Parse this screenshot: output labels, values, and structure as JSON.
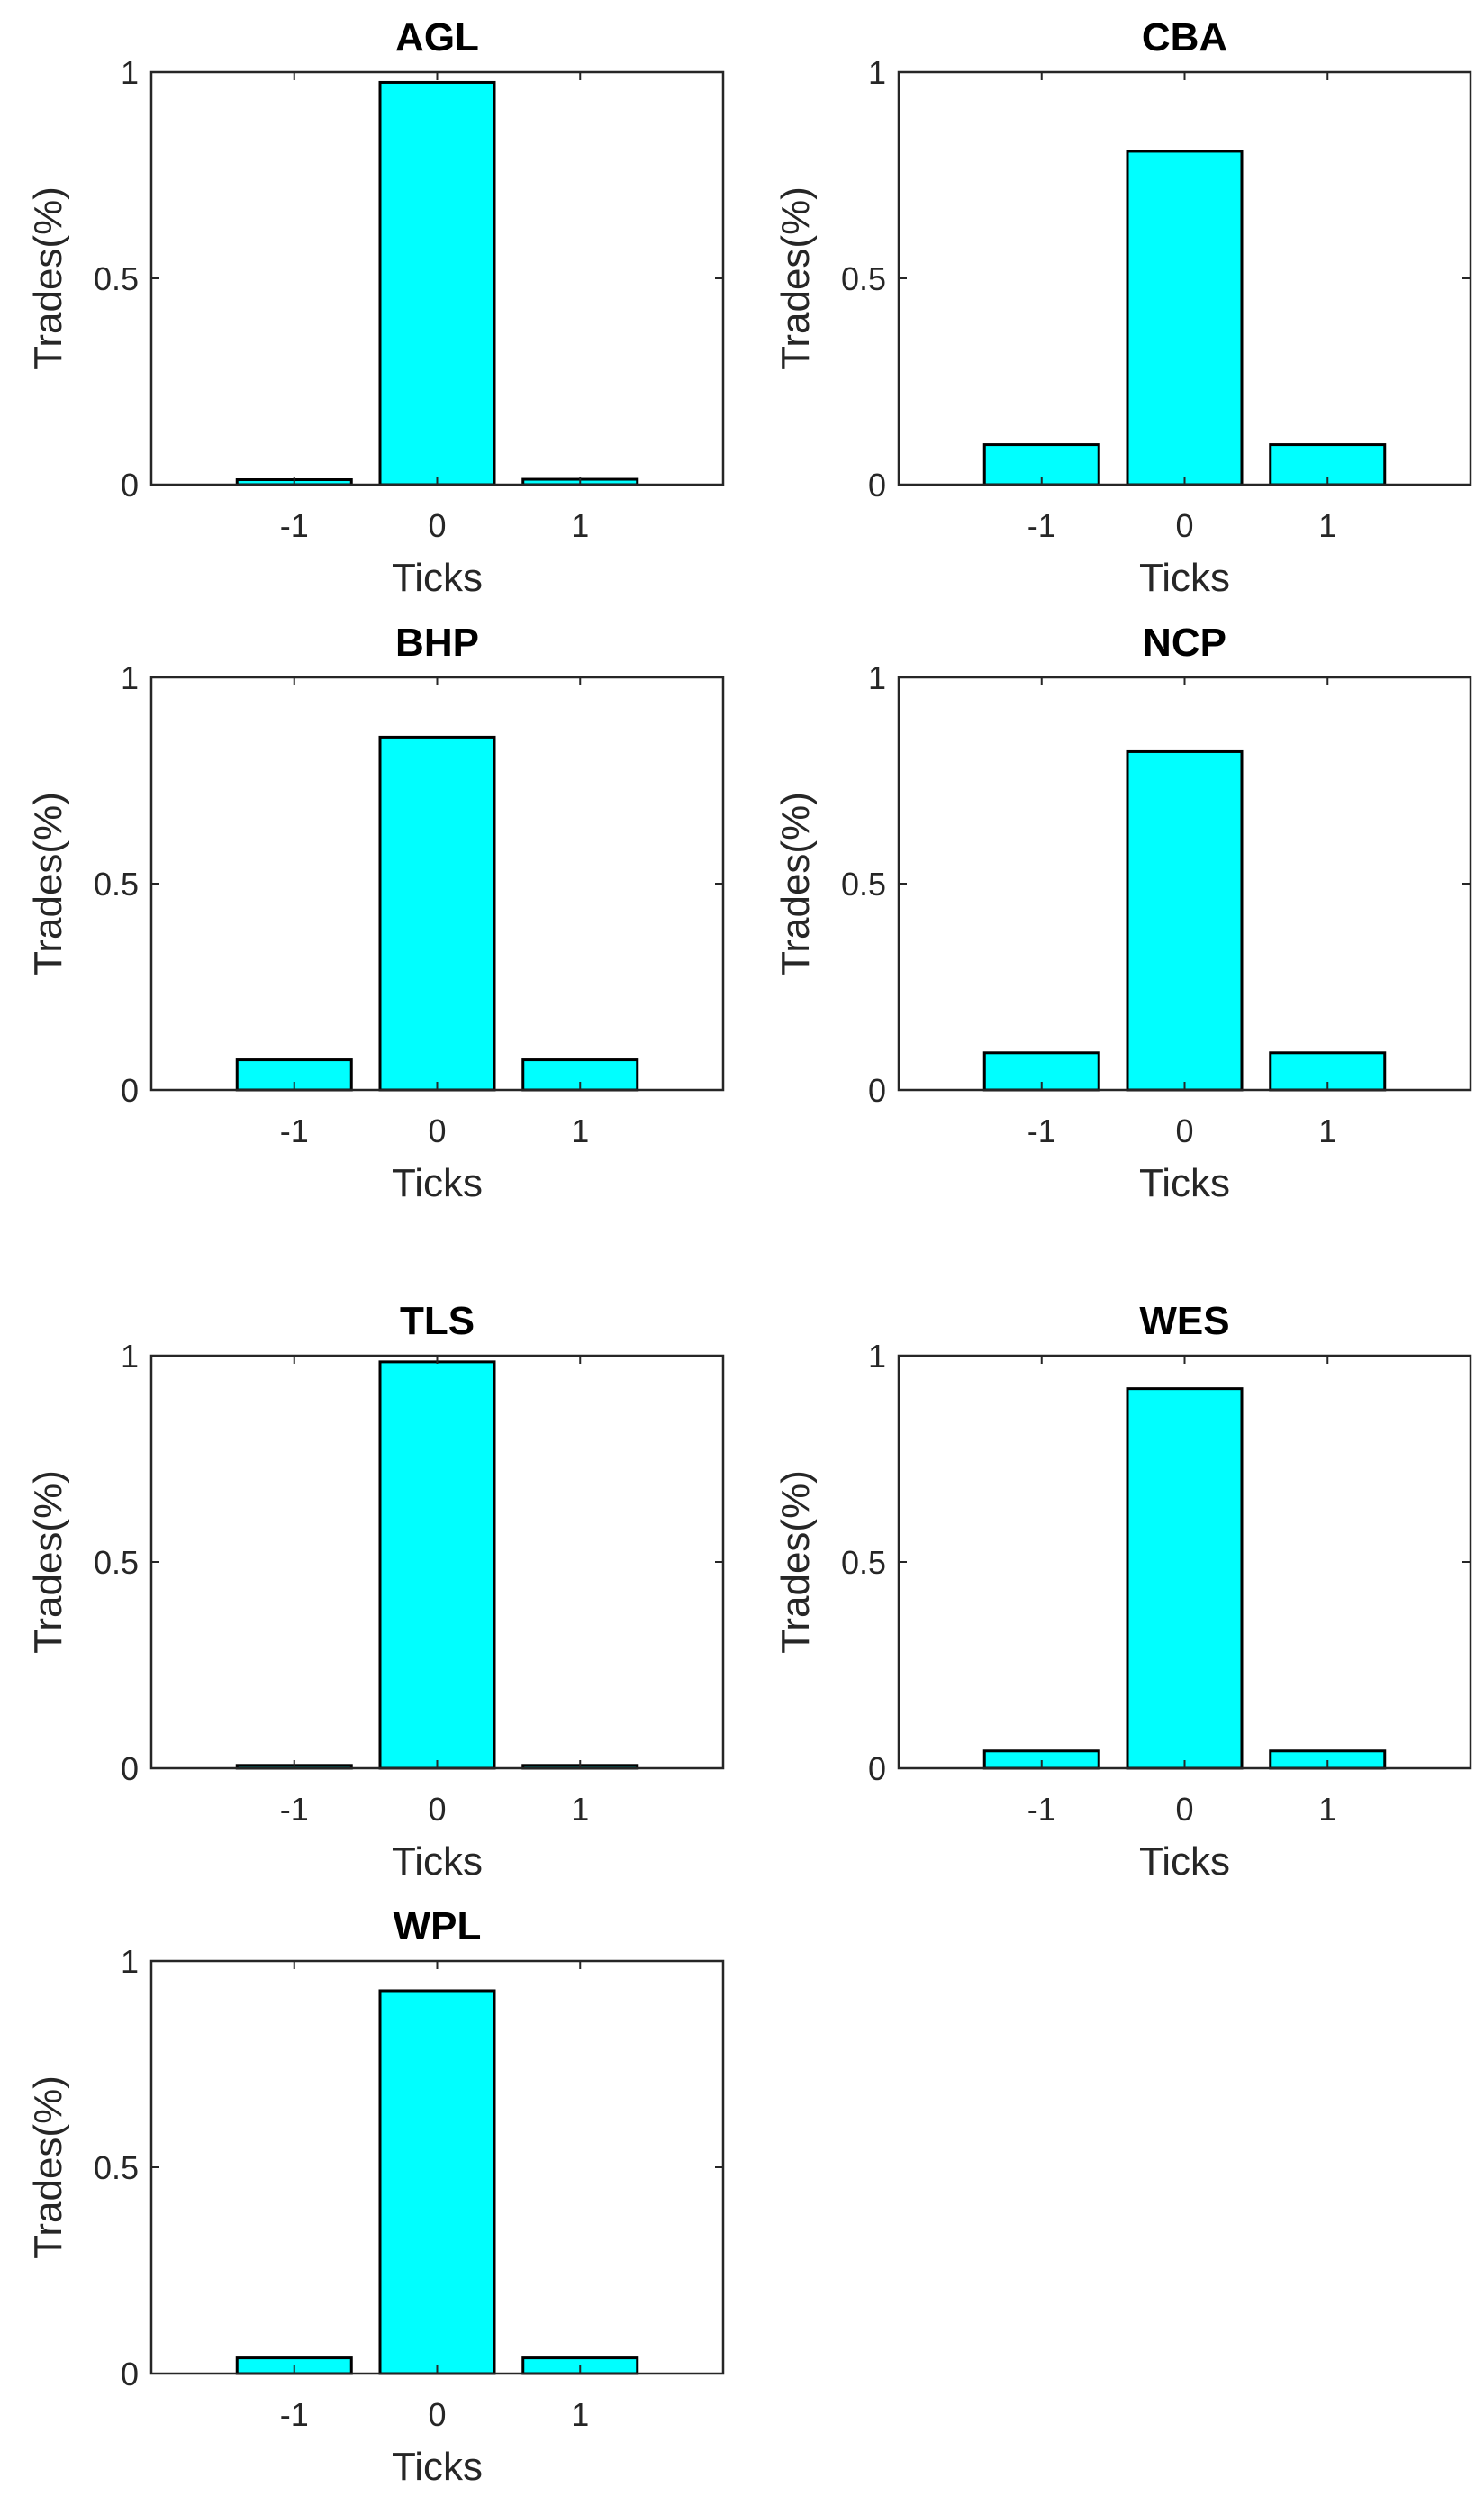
{
  "chart_data": [
    {
      "type": "bar",
      "title": "AGL",
      "categories": [
        "-1",
        "0",
        "1"
      ],
      "values": [
        0.012,
        0.975,
        0.013
      ],
      "xlabel": "Ticks",
      "ylabel": "Trades(%)",
      "ylim": [
        0,
        1
      ],
      "yticks": [
        "0",
        "0.5",
        "1"
      ],
      "bar_color": "#00ffff"
    },
    {
      "type": "bar",
      "title": "CBA",
      "categories": [
        "-1",
        "0",
        "1"
      ],
      "values": [
        0.097,
        0.808,
        0.097
      ],
      "xlabel": "Ticks",
      "ylabel": "Trades(%)",
      "ylim": [
        0,
        1
      ],
      "yticks": [
        "0",
        "0.5",
        "1"
      ],
      "bar_color": "#00ffff"
    },
    {
      "type": "bar",
      "title": "BHP",
      "categories": [
        "-1",
        "0",
        "1"
      ],
      "values": [
        0.073,
        0.855,
        0.073
      ],
      "xlabel": "Ticks",
      "ylabel": "Trades(%)",
      "ylim": [
        0,
        1
      ],
      "yticks": [
        "0",
        "0.5",
        "1"
      ],
      "bar_color": "#00ffff"
    },
    {
      "type": "bar",
      "title": "NCP",
      "categories": [
        "-1",
        "0",
        "1"
      ],
      "values": [
        0.09,
        0.82,
        0.09
      ],
      "xlabel": "Ticks",
      "ylabel": "Trades(%)",
      "ylim": [
        0,
        1
      ],
      "yticks": [
        "0",
        "0.5",
        "1"
      ],
      "bar_color": "#00ffff"
    },
    {
      "type": "bar",
      "title": "TLS",
      "categories": [
        "-1",
        "0",
        "1"
      ],
      "values": [
        0.007,
        0.985,
        0.007
      ],
      "xlabel": "Ticks",
      "ylabel": "Trades(%)",
      "ylim": [
        0,
        1
      ],
      "yticks": [
        "0",
        "0.5",
        "1"
      ],
      "bar_color": "#00ffff"
    },
    {
      "type": "bar",
      "title": "WES",
      "categories": [
        "-1",
        "0",
        "1"
      ],
      "values": [
        0.042,
        0.92,
        0.042
      ],
      "xlabel": "Ticks",
      "ylabel": "Trades(%)",
      "ylim": [
        0,
        1
      ],
      "yticks": [
        "0",
        "0.5",
        "1"
      ],
      "bar_color": "#00ffff"
    },
    {
      "type": "bar",
      "title": "WPL",
      "categories": [
        "-1",
        "0",
        "1"
      ],
      "values": [
        0.038,
        0.928,
        0.038
      ],
      "xlabel": "Ticks",
      "ylabel": "Trades(%)",
      "ylim": [
        0,
        1
      ],
      "yticks": [
        "0",
        "0.5",
        "1"
      ],
      "bar_color": "#00ffff"
    }
  ]
}
